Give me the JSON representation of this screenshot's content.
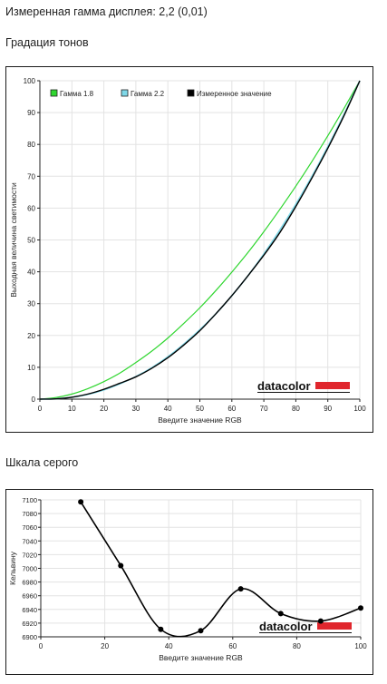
{
  "page": {
    "measured_gamma_label": "Измеренная гамма дисплея: 2,2 (0,01)",
    "tone_section_title": "Градация тонов",
    "gray_section_title": "Шкала серого",
    "logo_text": "datacolor"
  },
  "colors": {
    "gamma18": "#2fd62f",
    "gamma22": "#7fd8e8",
    "measured": "#000000",
    "logo_bar": "#e0262d",
    "grid": "#e3e3e3"
  },
  "chart_data": [
    {
      "type": "line",
      "title": "Градация тонов",
      "xlabel": "Введите значение RGB",
      "ylabel": "Выходная величина светимости",
      "xlim": [
        0,
        100
      ],
      "ylim": [
        0,
        100
      ],
      "xticks": [
        0,
        10,
        20,
        30,
        40,
        50,
        60,
        70,
        80,
        90,
        100
      ],
      "yticks": [
        0,
        10,
        20,
        30,
        40,
        50,
        60,
        70,
        80,
        90,
        100
      ],
      "grid": true,
      "legend_position": "top-left",
      "series": [
        {
          "name": "Гамма 1.8",
          "x": [
            0,
            5,
            10,
            15,
            20,
            25,
            30,
            35,
            40,
            45,
            50,
            55,
            60,
            65,
            70,
            75,
            80,
            85,
            90,
            95,
            100
          ],
          "y": [
            0,
            0.5,
            1.6,
            3.3,
            5.5,
            8.2,
            11.5,
            15.1,
            19.2,
            23.8,
            28.7,
            34.1,
            39.9,
            46.0,
            52.6,
            59.6,
            66.9,
            74.6,
            82.7,
            91.2,
            100
          ]
        },
        {
          "name": "Гамма 2.2",
          "x": [
            0,
            5,
            10,
            15,
            20,
            25,
            30,
            35,
            40,
            45,
            50,
            55,
            60,
            65,
            70,
            75,
            80,
            85,
            90,
            95,
            100
          ],
          "y": [
            0,
            0.1,
            0.6,
            1.5,
            2.9,
            4.8,
            7.1,
            9.9,
            13.3,
            17.3,
            21.8,
            26.8,
            32.5,
            38.7,
            45.6,
            53.1,
            61.2,
            69.9,
            79.3,
            89.3,
            100
          ]
        },
        {
          "name": "Измеренное значение",
          "x": [
            0,
            5,
            10,
            15,
            20,
            25,
            30,
            35,
            40,
            45,
            50,
            55,
            60,
            65,
            70,
            75,
            80,
            85,
            90,
            95,
            100
          ],
          "y": [
            0,
            0.1,
            0.6,
            1.6,
            3.1,
            5.0,
            7.0,
            9.7,
            13.0,
            17.0,
            21.5,
            26.8,
            32.5,
            38.7,
            45.2,
            52.3,
            60.5,
            69.4,
            78.8,
            88.9,
            100
          ]
        }
      ]
    },
    {
      "type": "line",
      "title": "Шкала серого",
      "xlabel": "Введите значение RGB",
      "ylabel": "Кельвину",
      "xlim": [
        0,
        100
      ],
      "ylim": [
        6900,
        7100
      ],
      "xticks": [
        0,
        20,
        40,
        60,
        80,
        100
      ],
      "yticks": [
        6900,
        6920,
        6940,
        6960,
        6980,
        7000,
        7020,
        7040,
        7060,
        7080,
        7100
      ],
      "grid": true,
      "series": [
        {
          "x": [
            12.5,
            25,
            37.5,
            50,
            62.5,
            75,
            87.5,
            100
          ],
          "y": [
            7097,
            7004,
            6911,
            6909,
            6970,
            6934,
            6923,
            6942
          ]
        }
      ]
    }
  ]
}
